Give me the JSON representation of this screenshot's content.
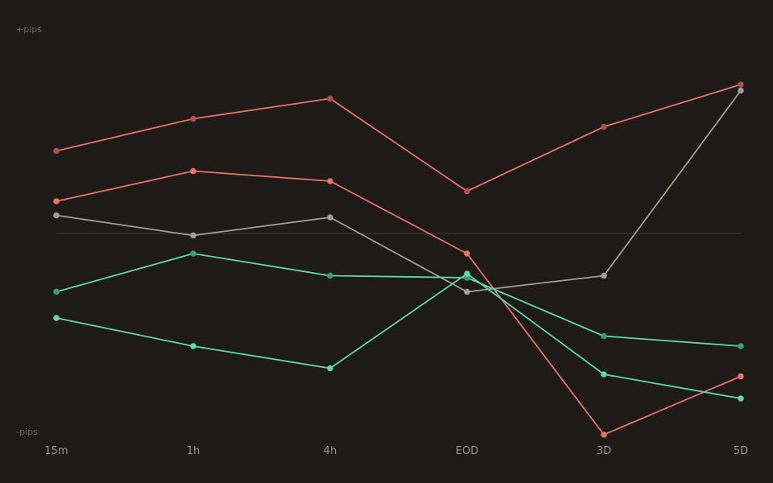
{
  "chart_data": {
    "type": "line",
    "y_top_label": "+pips",
    "y_bottom_label": "-pips",
    "categories": [
      "15m",
      "1h",
      "4h",
      "EOD",
      "3D",
      "5D"
    ],
    "ylim": [
      -100,
      100
    ],
    "zero_line": true,
    "grid": false,
    "legend": "none",
    "series": [
      {
        "color": "#e8716a",
        "marker_color": "#b24f4a",
        "values": [
          41,
          57,
          67,
          21,
          53,
          74
        ]
      },
      {
        "color": "#e8716a",
        "marker_color": "#e8716a",
        "values": [
          16,
          31,
          26,
          -10,
          -100,
          -71
        ]
      },
      {
        "color": "#a59d94",
        "marker_color": "#a59d94",
        "values": [
          9,
          -1,
          8,
          -29,
          -21,
          71
        ]
      },
      {
        "color": "#5ed8ac",
        "marker_color": "#3a9c78",
        "values": [
          -29,
          -10,
          -21,
          -22,
          -51,
          -56
        ]
      },
      {
        "color": "#5ed8ac",
        "marker_color": "#5ed8ac",
        "values": [
          -42,
          -56,
          -67,
          -20,
          -70,
          -82
        ]
      }
    ]
  }
}
